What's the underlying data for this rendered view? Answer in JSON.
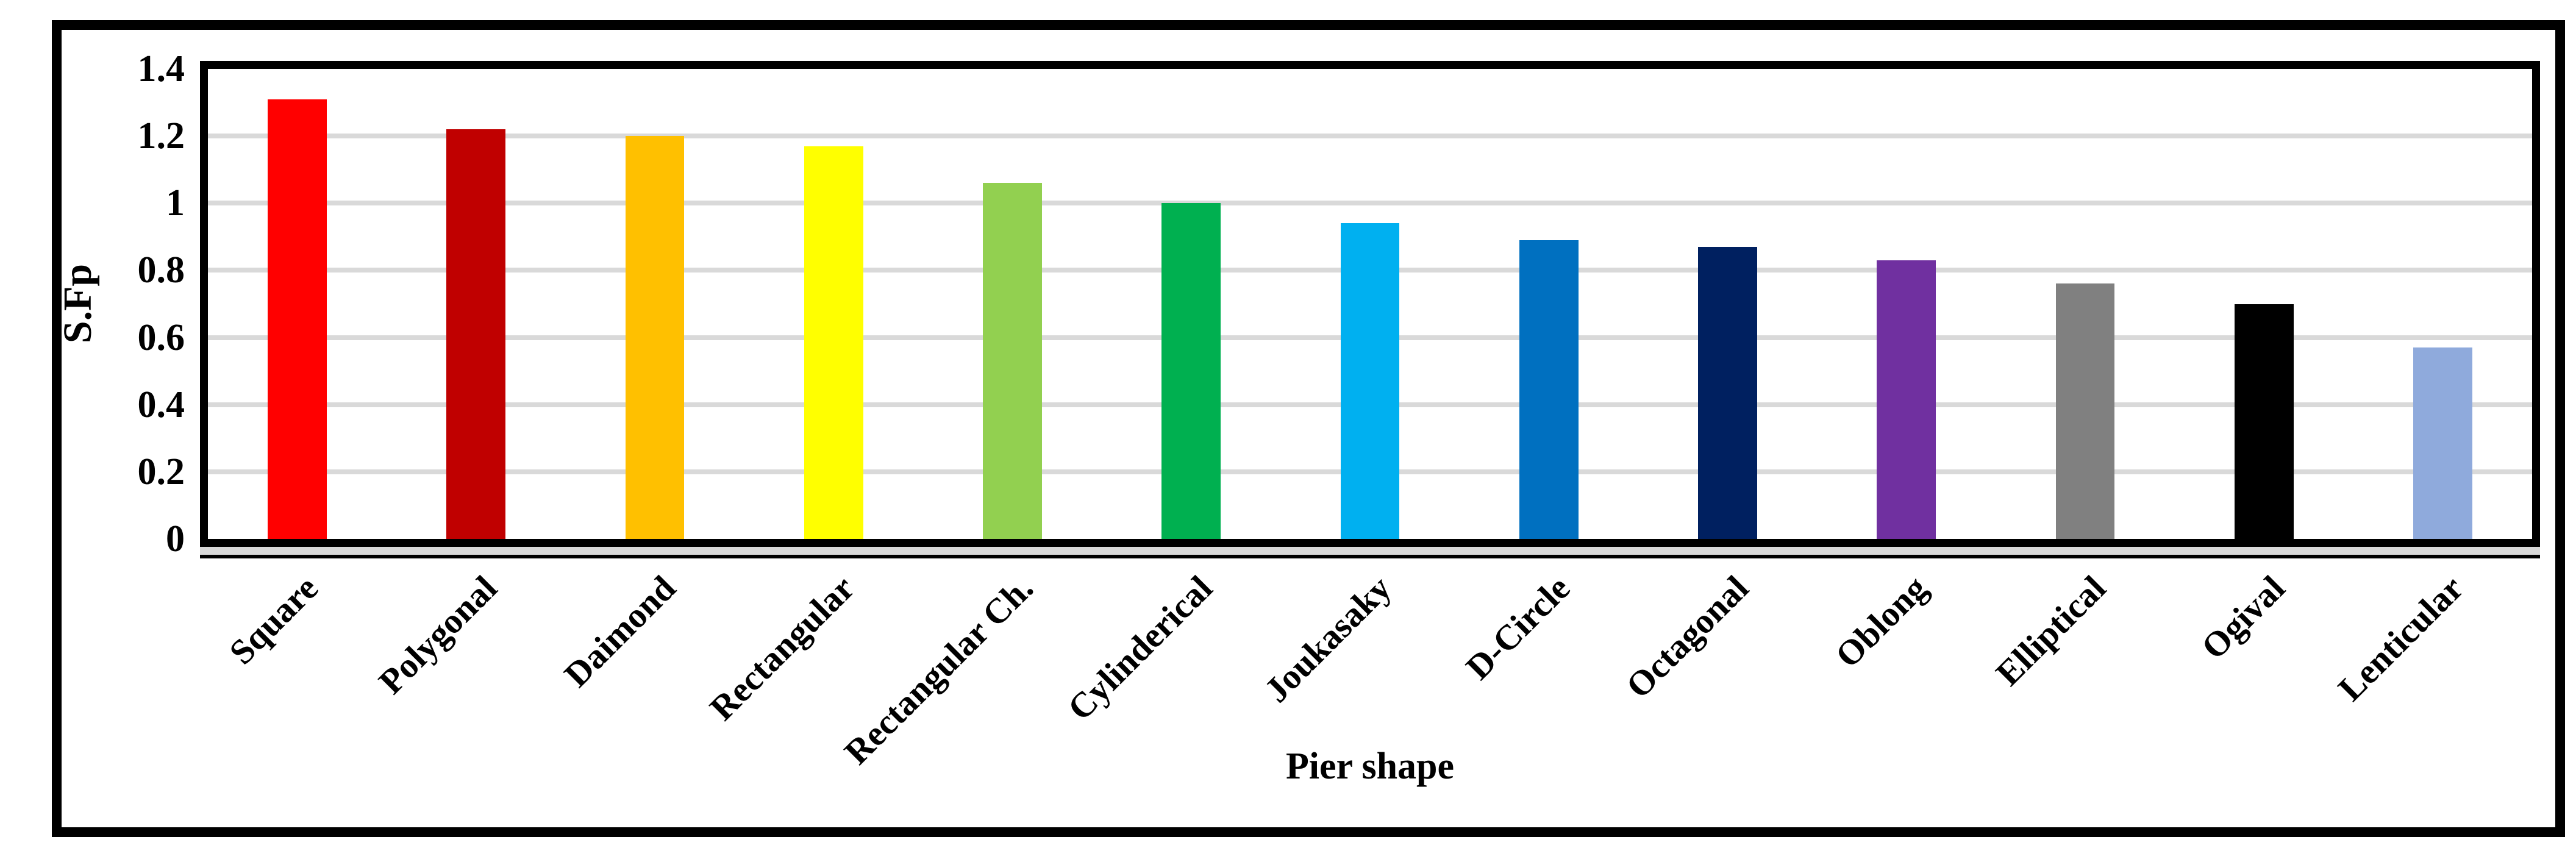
{
  "chart_data": {
    "type": "bar",
    "title": "",
    "xlabel": "Pier shape",
    "ylabel": "S.Fp",
    "categories": [
      "Square",
      "Polygonal",
      "Daimond",
      "Rectangular",
      "Rectangular Ch.",
      "Cylinderical",
      "Joukasaky",
      "D-Circle",
      "Octagonal",
      "Oblong",
      "Elliptical",
      "Ogival",
      "Lenticular"
    ],
    "values": [
      1.31,
      1.22,
      1.2,
      1.17,
      1.06,
      1.0,
      0.94,
      0.89,
      0.87,
      0.83,
      0.76,
      0.7,
      0.57
    ],
    "bar_colors": [
      "#FF0000",
      "#C00000",
      "#FFC000",
      "#FFFF00",
      "#92D050",
      "#00B050",
      "#00B0F0",
      "#0070C0",
      "#002060",
      "#7030A0",
      "#808080",
      "#000000",
      "#8FAADC"
    ],
    "ylim": [
      0,
      1.4
    ],
    "ytick_step": 0.2,
    "ytick_labels": [
      "0",
      "0.2",
      "0.4",
      "0.6",
      "0.8",
      "1",
      "1.2",
      "1.4"
    ],
    "grid": "horizontal",
    "gridline_color": "#D9D9D9",
    "legend": "none",
    "frame_color": "#000000",
    "background": "#FFFFFF"
  }
}
